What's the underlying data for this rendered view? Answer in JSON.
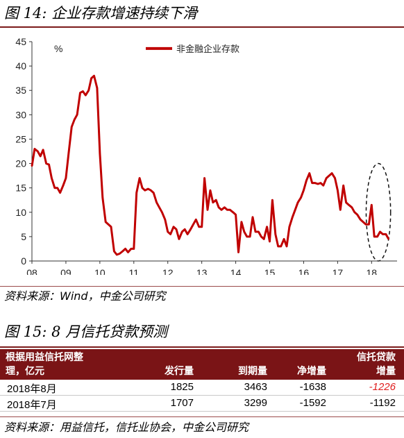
{
  "figure14": {
    "title": "图 14:  企业存款增速持续下滑",
    "source": "资料来源：Wind，中金公司研究"
  },
  "figure15": {
    "title": "图 15: 8 月信托贷款预测",
    "source": "资料来源：用益信托，信托业协会，中金公司研究"
  },
  "table": {
    "headers": {
      "col1_line1": "根据用益信托网整",
      "col1_line2": "理，亿元",
      "col2": "发行量",
      "col3": "到期量",
      "col4": "净增量",
      "col5_line1": "信托贷款",
      "col5_line2": "增量"
    },
    "rows": [
      {
        "period": "2018年8月",
        "issued": "1825",
        "maturing": "3463",
        "net": "-1638",
        "trust_loan": "-1226",
        "forecast": true
      },
      {
        "period": "2018年7月",
        "issued": "1707",
        "maturing": "3299",
        "net": "-1592",
        "trust_loan": "-1192",
        "forecast": false
      }
    ]
  },
  "chart_data": {
    "type": "line",
    "title": "",
    "ylabel": "%",
    "ylim": [
      0,
      45
    ],
    "yticks": [
      0,
      5,
      10,
      15,
      20,
      25,
      30,
      35,
      40,
      45
    ],
    "xlim": [
      2008,
      2018.75
    ],
    "xticks": [
      {
        "value": 2008,
        "label": "08"
      },
      {
        "value": 2009,
        "label": "09"
      },
      {
        "value": 2010,
        "label": "10"
      },
      {
        "value": 2011,
        "label": "11"
      },
      {
        "value": 2012,
        "label": "12"
      },
      {
        "value": 2013,
        "label": "13"
      },
      {
        "value": 2014,
        "label": "14"
      },
      {
        "value": 2015,
        "label": "15"
      },
      {
        "value": 2016,
        "label": "16"
      },
      {
        "value": 2017,
        "label": "17"
      },
      {
        "value": 2018,
        "label": "18"
      }
    ],
    "grid": false,
    "legend_position": "top-center",
    "line_color": "#c00000",
    "highlight_ellipse": {
      "x_center": 2018.2,
      "y_center": 10,
      "x_radius": 0.36,
      "y_radius": 10
    },
    "series": [
      {
        "name": "非金融企业存款",
        "x": [
          2008.0,
          2008.08,
          2008.17,
          2008.25,
          2008.33,
          2008.42,
          2008.5,
          2008.58,
          2008.67,
          2008.75,
          2008.83,
          2008.92,
          2009.0,
          2009.08,
          2009.17,
          2009.25,
          2009.33,
          2009.42,
          2009.5,
          2009.58,
          2009.67,
          2009.75,
          2009.83,
          2009.92,
          2010.0,
          2010.08,
          2010.17,
          2010.25,
          2010.33,
          2010.42,
          2010.5,
          2010.58,
          2010.67,
          2010.75,
          2010.83,
          2010.92,
          2011.0,
          2011.08,
          2011.17,
          2011.25,
          2011.33,
          2011.42,
          2011.5,
          2011.58,
          2011.67,
          2011.75,
          2011.83,
          2011.92,
          2012.0,
          2012.08,
          2012.17,
          2012.25,
          2012.33,
          2012.42,
          2012.5,
          2012.58,
          2012.67,
          2012.75,
          2012.83,
          2012.92,
          2013.0,
          2013.08,
          2013.17,
          2013.25,
          2013.33,
          2013.42,
          2013.5,
          2013.58,
          2013.67,
          2013.75,
          2013.83,
          2013.92,
          2014.0,
          2014.08,
          2014.17,
          2014.25,
          2014.33,
          2014.42,
          2014.5,
          2014.58,
          2014.67,
          2014.75,
          2014.83,
          2014.92,
          2015.0,
          2015.08,
          2015.17,
          2015.25,
          2015.33,
          2015.42,
          2015.5,
          2015.58,
          2015.67,
          2015.75,
          2015.83,
          2015.92,
          2016.0,
          2016.08,
          2016.17,
          2016.25,
          2016.33,
          2016.42,
          2016.5,
          2016.58,
          2016.67,
          2016.75,
          2016.83,
          2016.92,
          2017.0,
          2017.08,
          2017.17,
          2017.25,
          2017.33,
          2017.42,
          2017.5,
          2017.58,
          2017.67,
          2017.75,
          2017.83,
          2017.92,
          2018.0,
          2018.08,
          2018.17,
          2018.25,
          2018.33,
          2018.42,
          2018.5
        ],
        "values": [
          19.5,
          23.0,
          22.5,
          21.5,
          22.8,
          20.0,
          19.8,
          17.0,
          15.0,
          15.0,
          14.0,
          15.5,
          17.0,
          22.0,
          27.5,
          29.0,
          30.0,
          34.5,
          34.8,
          34.0,
          35.0,
          37.5,
          38.0,
          35.5,
          22.0,
          13.0,
          8.0,
          7.5,
          7.0,
          2.0,
          1.3,
          1.5,
          2.0,
          2.5,
          1.8,
          2.5,
          2.5,
          14.0,
          17.0,
          15.0,
          14.5,
          14.8,
          14.5,
          14.0,
          12.0,
          11.0,
          10.0,
          8.5,
          6.0,
          5.5,
          7.0,
          6.5,
          4.5,
          6.0,
          6.5,
          5.5,
          6.5,
          7.5,
          8.5,
          7.0,
          7.0,
          17.0,
          10.5,
          14.5,
          12.0,
          12.5,
          11.0,
          10.5,
          11.0,
          10.5,
          10.5,
          10.0,
          9.5,
          1.8,
          8.0,
          6.0,
          5.0,
          5.0,
          9.0,
          6.0,
          6.0,
          5.0,
          4.5,
          7.0,
          4.0,
          12.5,
          5.5,
          3.0,
          3.0,
          4.5,
          3.0,
          7.0,
          9.0,
          10.5,
          12.0,
          13.0,
          14.5,
          16.5,
          18.0,
          16.0,
          16.0,
          15.8,
          16.0,
          15.5,
          17.0,
          17.5,
          18.0,
          17.0,
          14.5,
          10.5,
          15.5,
          12.0,
          11.5,
          11.0,
          10.0,
          9.5,
          8.5,
          8.0,
          7.5,
          7.5,
          11.5,
          5.0,
          5.0,
          6.0,
          5.5,
          5.5,
          4.5
        ]
      }
    ]
  }
}
